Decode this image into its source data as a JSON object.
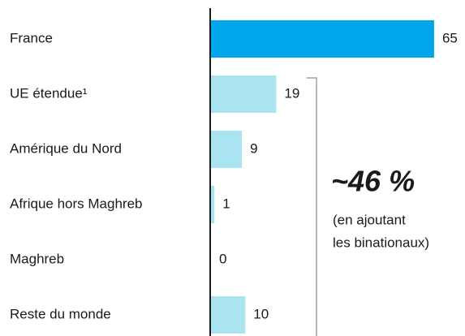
{
  "chart_data": {
    "type": "bar",
    "orientation": "horizontal",
    "categories": [
      "France",
      "UE étendue¹",
      "Amérique du Nord",
      "Afrique hors Maghreb",
      "Maghreb",
      "Reste du monde"
    ],
    "values": [
      65,
      19,
      9,
      1,
      0,
      10
    ],
    "colors": [
      "#00a6ea",
      "#a9e4f0",
      "#a9e4f0",
      "#a9e4f0",
      "#a9e4f0",
      "#a9e4f0"
    ],
    "annotation": {
      "title": "~46 %",
      "lines": [
        "(en ajoutant",
        "les binationaux)"
      ]
    }
  }
}
